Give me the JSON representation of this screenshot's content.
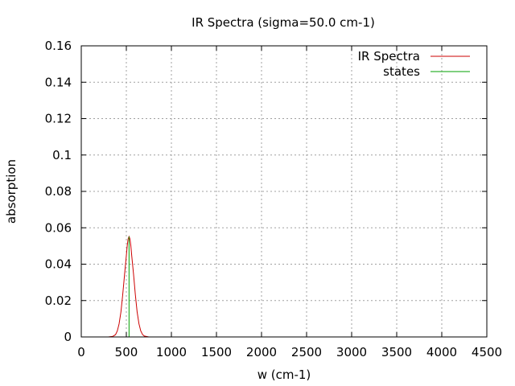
{
  "chart_data": {
    "type": "line",
    "title": "IR Spectra (sigma=50.0 cm-1)",
    "xlabel": "w (cm-1)",
    "ylabel": "absorption",
    "xlim": [
      0,
      4500
    ],
    "ylim": [
      0,
      0.16
    ],
    "x_ticks": [
      "0",
      "500",
      "1000",
      "1500",
      "2000",
      "2500",
      "3000",
      "3500",
      "4000",
      "4500"
    ],
    "y_ticks": [
      "0",
      "0.02",
      "0.04",
      "0.06",
      "0.08",
      "0.1",
      "0.12",
      "0.14",
      "0.16"
    ],
    "grid": true,
    "legend_position": "top-right",
    "series": [
      {
        "name": "IR Spectra",
        "color": "#cc0000",
        "style": "line",
        "x": [
          300,
          350,
          380,
          400,
          420,
          440,
          460,
          480,
          500,
          510,
          520,
          530,
          540,
          550,
          560,
          580,
          600,
          620,
          640,
          660,
          680,
          700,
          750,
          800,
          1000,
          1500,
          2000,
          2500,
          3000,
          3500,
          4000,
          4500
        ],
        "y": [
          0.0,
          0.0003,
          0.0013,
          0.0033,
          0.0072,
          0.0138,
          0.0232,
          0.0343,
          0.0447,
          0.0501,
          0.0539,
          0.0552,
          0.0539,
          0.0501,
          0.0447,
          0.0343,
          0.0232,
          0.0138,
          0.0072,
          0.0033,
          0.0013,
          0.0005,
          0.0,
          0.0,
          0.0,
          0.0,
          0.0,
          0.0,
          0.0,
          0.0,
          0.0,
          0.0
        ]
      },
      {
        "name": "states",
        "color": "#00a000",
        "style": "impulse",
        "x": [
          530
        ],
        "y": [
          0.0552
        ]
      }
    ]
  }
}
